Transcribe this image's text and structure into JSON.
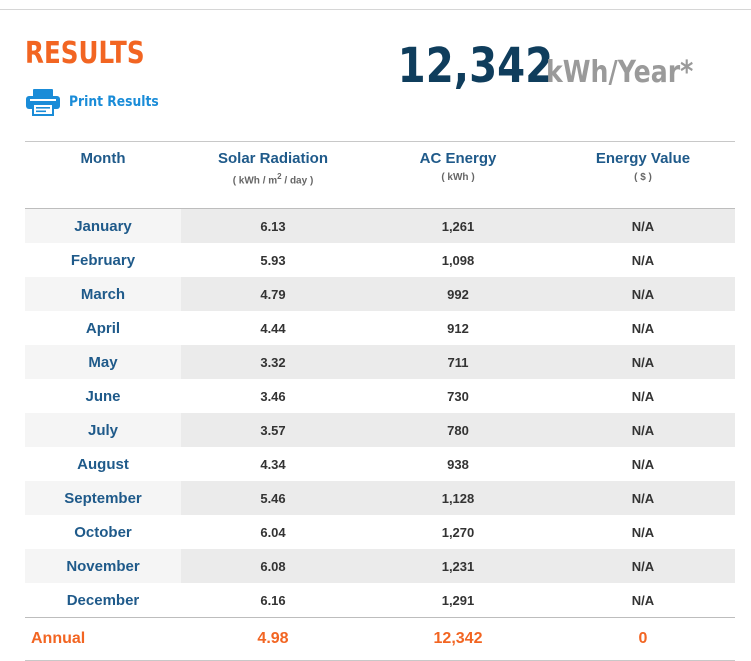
{
  "header": {
    "title": "RESULTS",
    "print_label": "Print Results",
    "total_value": "12,342",
    "total_unit": "kWh/Year*"
  },
  "table": {
    "columns": [
      {
        "label": "Month",
        "sub": ""
      },
      {
        "label": "Solar Radiation",
        "sub_pre": "( kWh / m",
        "sub_sup": "2",
        "sub_post": " / day )"
      },
      {
        "label": "AC Energy",
        "sub": "( kWh )"
      },
      {
        "label": "Energy Value",
        "sub": "( $ )"
      }
    ],
    "rows": [
      {
        "month": "January",
        "solar": "6.13",
        "ac": "1,261",
        "value": "N/A"
      },
      {
        "month": "February",
        "solar": "5.93",
        "ac": "1,098",
        "value": "N/A"
      },
      {
        "month": "March",
        "solar": "4.79",
        "ac": "992",
        "value": "N/A"
      },
      {
        "month": "April",
        "solar": "4.44",
        "ac": "912",
        "value": "N/A"
      },
      {
        "month": "May",
        "solar": "3.32",
        "ac": "711",
        "value": "N/A"
      },
      {
        "month": "June",
        "solar": "3.46",
        "ac": "730",
        "value": "N/A"
      },
      {
        "month": "July",
        "solar": "3.57",
        "ac": "780",
        "value": "N/A"
      },
      {
        "month": "August",
        "solar": "4.34",
        "ac": "938",
        "value": "N/A"
      },
      {
        "month": "September",
        "solar": "5.46",
        "ac": "1,128",
        "value": "N/A"
      },
      {
        "month": "October",
        "solar": "6.04",
        "ac": "1,270",
        "value": "N/A"
      },
      {
        "month": "November",
        "solar": "6.08",
        "ac": "1,231",
        "value": "N/A"
      },
      {
        "month": "December",
        "solar": "6.16",
        "ac": "1,291",
        "value": "N/A"
      }
    ],
    "annual": {
      "label": "Annual",
      "solar": "4.98",
      "ac": "12,342",
      "value": "0"
    }
  },
  "colors": {
    "accent_orange": "#f26522",
    "link_blue": "#1a8cd8",
    "heading_blue": "#1f5a8a",
    "total_navy": "#0f3d5c"
  },
  "icons": {
    "print": "printer-icon"
  }
}
